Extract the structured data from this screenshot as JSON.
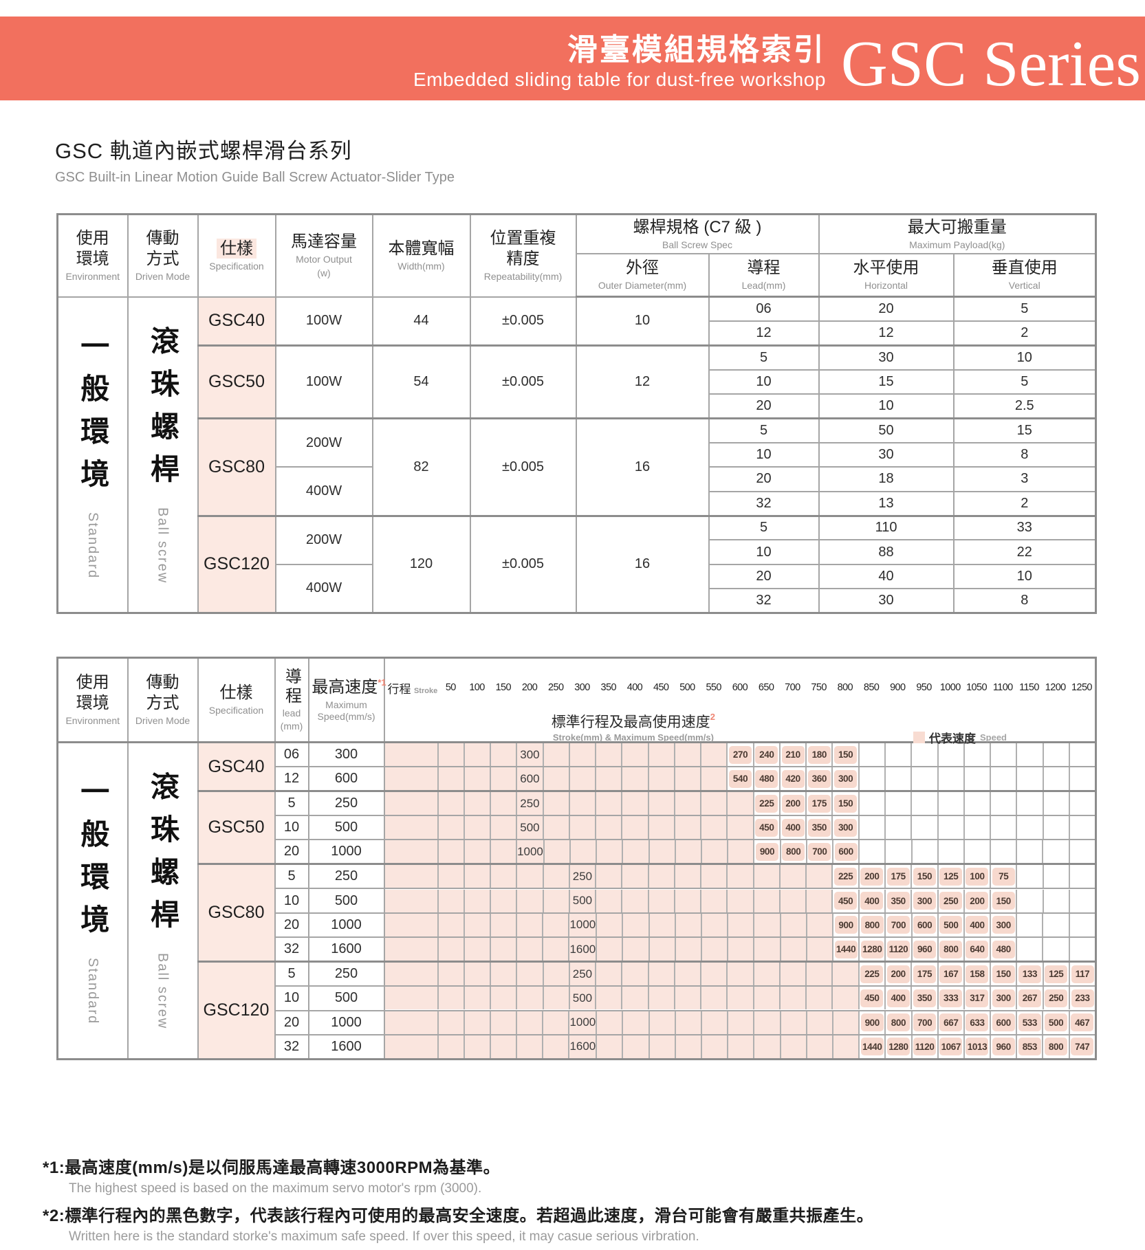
{
  "banner": {
    "title_zh": "滑臺模組規格索引",
    "title_en": "Embedded sliding table for dust-free workshop",
    "series": "GSC Series",
    "bg_color": "#F2705E"
  },
  "page_title": {
    "zh": "GSC 軌道內嵌式螺桿滑台系列",
    "en": "GSC Built-in Linear Motion Guide Ball Screw Actuator-Slider Type"
  },
  "spec_table": {
    "headers": {
      "environment_zh": "使用環境",
      "environment_en": "Environment",
      "driven_zh": "傳動方式",
      "driven_en": "Driven Mode",
      "spec_zh": "仕樣",
      "spec_en": "Specification",
      "motor_zh": "馬達容量",
      "motor_en": "Motor Output",
      "motor_unit": "(w)",
      "width_zh": "本體寬幅",
      "width_en": "Width(mm)",
      "repeat_zh": "位置重複精度",
      "repeat_en": "Repeatability(mm)",
      "screw_zh": "螺桿規格 (C7 級 )",
      "screw_en": "Ball Screw Spec",
      "od_zh": "外徑",
      "od_en": "Outer Diameter(mm)",
      "lead_zh": "導程",
      "lead_en": "Lead(mm)",
      "payload_zh": "最大可搬重量",
      "payload_en": "Maximum Payload(kg)",
      "horiz_zh": "水平使用",
      "horiz_en": "Horizontal",
      "vert_zh": "垂直使用",
      "vert_en": "Vertical"
    },
    "environment_zh": "一般環境",
    "environment_en": "Standard",
    "driven_zh": "滾珠螺桿",
    "driven_en": "Ball screw",
    "groups": [
      {
        "model": "GSC40",
        "motors": [
          {
            "label": "100W"
          }
        ],
        "width": "44",
        "repeat": "±0.005",
        "od": "10",
        "rows": [
          {
            "lead": "06",
            "h": "20",
            "v": "5"
          },
          {
            "lead": "12",
            "h": "12",
            "v": "2"
          }
        ]
      },
      {
        "model": "GSC50",
        "motors": [
          {
            "label": "100W"
          }
        ],
        "width": "54",
        "repeat": "±0.005",
        "od": "12",
        "rows": [
          {
            "lead": "5",
            "h": "30",
            "v": "10"
          },
          {
            "lead": "10",
            "h": "15",
            "v": "5"
          },
          {
            "lead": "20",
            "h": "10",
            "v": "2.5"
          }
        ]
      },
      {
        "model": "GSC80",
        "motors": [
          {
            "label": "200W"
          },
          {
            "label": "400W"
          }
        ],
        "width": "82",
        "repeat": "±0.005",
        "od": "16",
        "rows": [
          {
            "lead": "5",
            "h": "50",
            "v": "15"
          },
          {
            "lead": "10",
            "h": "30",
            "v": "8"
          },
          {
            "lead": "20",
            "h": "18",
            "v": "3"
          },
          {
            "lead": "32",
            "h": "13",
            "v": "2"
          }
        ]
      },
      {
        "model": "GSC120",
        "motors": [
          {
            "label": "200W"
          },
          {
            "label": "400W"
          }
        ],
        "width": "120",
        "repeat": "±0.005",
        "od": "16",
        "rows": [
          {
            "lead": "5",
            "h": "110",
            "v": "33"
          },
          {
            "lead": "10",
            "h": "88",
            "v": "22"
          },
          {
            "lead": "20",
            "h": "40",
            "v": "10"
          },
          {
            "lead": "32",
            "h": "30",
            "v": "8"
          }
        ]
      }
    ]
  },
  "speed_table": {
    "headers": {
      "environment_zh": "使用環境",
      "environment_en": "Environment",
      "driven_zh": "傳動方式",
      "driven_en": "Driven Mode",
      "spec_zh": "仕樣",
      "spec_en": "Specification",
      "lead_zh": "導程",
      "lead_en": "lead",
      "lead_unit": "(mm)",
      "speed_zh": "最高速度",
      "speed_sup": "*1",
      "speed_en": "Maximum Speed(mm/s)",
      "stroke_title_zh": "標準行程及最高使用速度",
      "stroke_sup": "2",
      "stroke_title_en": "Stroke(mm) & Maximum Speed(mm/s)",
      "legend_zh": "代表速度",
      "legend_en": "Speed",
      "stroke_label_zh": "行程",
      "stroke_label_en": "Stroke"
    },
    "environment_zh": "一般環境",
    "environment_en": "Standard",
    "driven_zh": "滾珠螺桿",
    "driven_en": "Ball screw",
    "stroke_columns": [
      50,
      100,
      150,
      200,
      250,
      300,
      350,
      400,
      450,
      500,
      550,
      600,
      650,
      700,
      750,
      800,
      850,
      900,
      950,
      1000,
      1050,
      1100,
      1150,
      1200,
      1250
    ],
    "groups": [
      {
        "model": "GSC40",
        "rows": [
          {
            "lead": "06",
            "speed": "300",
            "bar_end": 550,
            "label_at": 200,
            "values": {
              "600": "270",
              "650": "240",
              "700": "210",
              "750": "180",
              "800": "150"
            }
          },
          {
            "lead": "12",
            "speed": "600",
            "bar_end": 550,
            "label_at": 200,
            "values": {
              "600": "540",
              "650": "480",
              "700": "420",
              "750": "360",
              "800": "300"
            }
          }
        ]
      },
      {
        "model": "GSC50",
        "rows": [
          {
            "lead": "5",
            "speed": "250",
            "bar_end": 600,
            "label_at": 200,
            "values": {
              "650": "225",
              "700": "200",
              "750": "175",
              "800": "150"
            }
          },
          {
            "lead": "10",
            "speed": "500",
            "bar_end": 600,
            "label_at": 200,
            "values": {
              "650": "450",
              "700": "400",
              "750": "350",
              "800": "300"
            }
          },
          {
            "lead": "20",
            "speed": "1000",
            "bar_end": 600,
            "label_at": 200,
            "values": {
              "650": "900",
              "700": "800",
              "750": "700",
              "800": "600"
            }
          }
        ]
      },
      {
        "model": "GSC80",
        "rows": [
          {
            "lead": "5",
            "speed": "250",
            "bar_end": 750,
            "label_at": 300,
            "values": {
              "800": "225",
              "850": "200",
              "900": "175",
              "950": "150",
              "1000": "125",
              "1050": "100",
              "1100": "75"
            }
          },
          {
            "lead": "10",
            "speed": "500",
            "bar_end": 750,
            "label_at": 300,
            "values": {
              "800": "450",
              "850": "400",
              "900": "350",
              "950": "300",
              "1000": "250",
              "1050": "200",
              "1100": "150"
            }
          },
          {
            "lead": "20",
            "speed": "1000",
            "bar_end": 750,
            "label_at": 300,
            "values": {
              "800": "900",
              "850": "800",
              "900": "700",
              "950": "600",
              "1000": "500",
              "1050": "400",
              "1100": "300"
            }
          },
          {
            "lead": "32",
            "speed": "1600",
            "bar_end": 750,
            "label_at": 300,
            "values": {
              "800": "1440",
              "850": "1280",
              "900": "1120",
              "950": "960",
              "1000": "800",
              "1050": "640",
              "1100": "480"
            }
          }
        ]
      },
      {
        "model": "GSC120",
        "rows": [
          {
            "lead": "5",
            "speed": "250",
            "bar_end": 800,
            "label_at": 300,
            "values": {
              "850": "225",
              "900": "200",
              "950": "175",
              "1000": "167",
              "1050": "158",
              "1100": "150",
              "1150": "133",
              "1200": "125",
              "1250": "117"
            }
          },
          {
            "lead": "10",
            "speed": "500",
            "bar_end": 800,
            "label_at": 300,
            "values": {
              "850": "450",
              "900": "400",
              "950": "350",
              "1000": "333",
              "1050": "317",
              "1100": "300",
              "1150": "267",
              "1200": "250",
              "1250": "233"
            }
          },
          {
            "lead": "20",
            "speed": "1000",
            "bar_end": 800,
            "label_at": 300,
            "values": {
              "850": "900",
              "900": "800",
              "950": "700",
              "1000": "667",
              "1050": "633",
              "1100": "600",
              "1150": "533",
              "1200": "500",
              "1250": "467"
            }
          },
          {
            "lead": "32",
            "speed": "1600",
            "bar_end": 800,
            "label_at": 300,
            "values": {
              "850": "1440",
              "900": "1280",
              "950": "1120",
              "1000": "1067",
              "1050": "1013",
              "1100": "960",
              "1150": "853",
              "1200": "800",
              "1250": "747"
            }
          }
        ]
      }
    ]
  },
  "footnotes": [
    {
      "marker": "*1:",
      "zh": "最高速度(mm/s)是以伺服馬達最高轉速3000RPM為基準。",
      "en": "The highest speed is based on the maximum servo motor's rpm (3000)."
    },
    {
      "marker": "*2:",
      "zh": "標準行程內的黑色數字，代表該行程內可使用的最高安全速度。若超過此速度，滑台可能會有嚴重共振產生。",
      "en": "Written here is the standard storke's maximum safe speed. If over this speed, it may casue serious virbration."
    }
  ],
  "colors": {
    "banner": "#F2705E",
    "bar_pink": "#FAE5DE",
    "chip_pink": "#F7D9CE",
    "cell_pink": "#FCE9E2",
    "border": "#8C8C8C"
  }
}
